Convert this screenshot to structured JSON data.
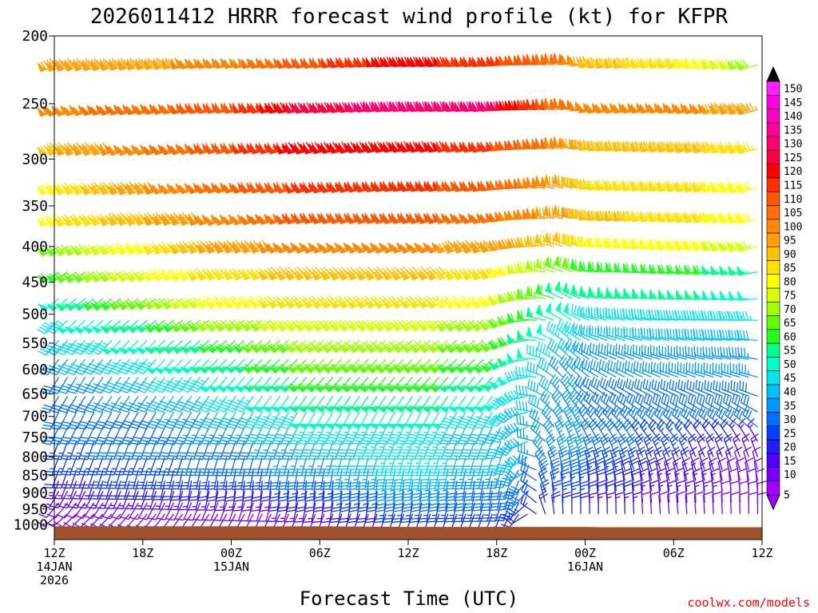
{
  "chart_data": {
    "type": "wind-barb-profile",
    "title": "2026011412 HRRR forecast wind profile (kt) for KFPR",
    "xlabel": "Forecast Time (UTC)",
    "ylabel": "",
    "credit": "coolwx.com/models",
    "y_axis": {
      "scale": "log-pressure",
      "range_hpa": [
        200,
        1050
      ],
      "ticks": [
        "200",
        "250",
        "300",
        "350",
        "400",
        "450",
        "500",
        "550",
        "600",
        "650",
        "700",
        "750",
        "800",
        "850",
        "900",
        "950",
        "1000"
      ]
    },
    "x_axis": {
      "range_hours": [
        0,
        48
      ],
      "ticks": [
        {
          "hour": 0,
          "l1": "12Z",
          "l2": "14JAN",
          "l3": "2026"
        },
        {
          "hour": 6,
          "l1": "18Z",
          "l2": "",
          "l3": ""
        },
        {
          "hour": 12,
          "l1": "00Z",
          "l2": "15JAN",
          "l3": ""
        },
        {
          "hour": 18,
          "l1": "06Z",
          "l2": "",
          "l3": ""
        },
        {
          "hour": 24,
          "l1": "12Z",
          "l2": "",
          "l3": ""
        },
        {
          "hour": 30,
          "l1": "18Z",
          "l2": "",
          "l3": ""
        },
        {
          "hour": 36,
          "l1": "00Z",
          "l2": "16JAN",
          "l3": ""
        },
        {
          "hour": 42,
          "l1": "06Z",
          "l2": "",
          "l3": ""
        },
        {
          "hour": 48,
          "l1": "12Z",
          "l2": "",
          "l3": ""
        }
      ]
    },
    "colorbar": {
      "levels": [
        5,
        10,
        15,
        20,
        25,
        30,
        35,
        40,
        45,
        50,
        55,
        60,
        65,
        70,
        75,
        80,
        85,
        90,
        95,
        100,
        105,
        110,
        115,
        120,
        125,
        130,
        135,
        140,
        145,
        150
      ],
      "labels": [
        "5",
        "10",
        "15",
        "20",
        "25",
        "30",
        "35",
        "40",
        "45",
        "50",
        "55",
        "60",
        "65",
        "70",
        "75",
        "80",
        "85",
        "90",
        "95",
        "100",
        "105",
        "110",
        "115",
        "120",
        "125",
        "130",
        "135",
        "140",
        "145",
        "150"
      ],
      "colors": [
        "#a000ff",
        "#7800ff",
        "#5000ff",
        "#2020f0",
        "#0040ff",
        "#0070ff",
        "#0098ff",
        "#00c0ff",
        "#00e6f0",
        "#00ffc8",
        "#00ff8c",
        "#20ff20",
        "#60ff00",
        "#a0ff00",
        "#d8ff00",
        "#ffff00",
        "#ffe000",
        "#ffc000",
        "#ffa000",
        "#ff8800",
        "#ff7000",
        "#ff5800",
        "#ff3000",
        "#ff0000",
        "#ff0040",
        "#ff0070",
        "#ff0098",
        "#ff00c0",
        "#ff00e6",
        "#ff20ff"
      ]
    },
    "profile": {
      "hours": [
        0,
        6,
        12,
        18,
        24,
        30,
        35,
        37,
        42,
        48
      ],
      "levels_hpa": [
        220,
        255,
        290,
        330,
        365,
        400,
        435,
        475,
        510,
        545,
        580,
        615,
        655,
        690,
        725,
        760,
        800,
        835,
        865,
        895,
        930,
        965
      ],
      "speeds_kt": [
        [
          95,
          95,
          100,
          110,
          120,
          115,
          105,
          90,
          85,
          70
        ],
        [
          100,
          105,
          110,
          125,
          130,
          130,
          105,
          100,
          100,
          95
        ],
        [
          90,
          100,
          110,
          120,
          120,
          115,
          100,
          90,
          90,
          85
        ],
        [
          80,
          95,
          105,
          115,
          115,
          110,
          95,
          85,
          85,
          80
        ],
        [
          80,
          90,
          100,
          110,
          110,
          105,
          95,
          90,
          85,
          80
        ],
        [
          65,
          80,
          95,
          100,
          100,
          95,
          90,
          80,
          80,
          75
        ],
        [
          60,
          75,
          85,
          90,
          90,
          85,
          65,
          60,
          60,
          55
        ],
        [
          50,
          65,
          80,
          85,
          85,
          80,
          55,
          55,
          55,
          50
        ],
        [
          45,
          55,
          70,
          75,
          75,
          70,
          50,
          45,
          45,
          45
        ],
        [
          40,
          50,
          60,
          70,
          70,
          65,
          45,
          40,
          40,
          40
        ],
        [
          35,
          45,
          55,
          65,
          65,
          60,
          40,
          35,
          35,
          35
        ],
        [
          30,
          40,
          50,
          60,
          60,
          55,
          35,
          35,
          35,
          35
        ],
        [
          30,
          35,
          45,
          55,
          55,
          50,
          35,
          30,
          30,
          30
        ],
        [
          30,
          30,
          40,
          50,
          50,
          45,
          35,
          30,
          30,
          30
        ],
        [
          30,
          30,
          35,
          45,
          45,
          40,
          35,
          30,
          30,
          30
        ],
        [
          25,
          30,
          30,
          40,
          45,
          40,
          35,
          30,
          25,
          15
        ],
        [
          25,
          25,
          30,
          35,
          45,
          40,
          35,
          30,
          25,
          15
        ],
        [
          20,
          25,
          25,
          30,
          40,
          35,
          30,
          25,
          20,
          10
        ],
        [
          15,
          20,
          20,
          25,
          35,
          30,
          30,
          25,
          15,
          10
        ],
        [
          15,
          15,
          15,
          20,
          30,
          30,
          25,
          20,
          15,
          10
        ],
        [
          10,
          10,
          10,
          15,
          25,
          25,
          25,
          20,
          15,
          10
        ],
        [
          10,
          10,
          10,
          10,
          20,
          20,
          20,
          15,
          10,
          10
        ]
      ],
      "directions_deg": [
        [
          250,
          255,
          260,
          260,
          265,
          265,
          280,
          260,
          260,
          255
        ],
        [
          250,
          255,
          260,
          260,
          265,
          265,
          280,
          260,
          260,
          255
        ],
        [
          250,
          250,
          255,
          255,
          260,
          260,
          280,
          265,
          260,
          255
        ],
        [
          250,
          250,
          255,
          255,
          260,
          260,
          285,
          265,
          260,
          255
        ],
        [
          245,
          250,
          250,
          255,
          255,
          255,
          285,
          265,
          260,
          255
        ],
        [
          240,
          245,
          250,
          250,
          250,
          250,
          290,
          270,
          260,
          255
        ],
        [
          235,
          240,
          245,
          245,
          245,
          245,
          295,
          275,
          265,
          260
        ],
        [
          230,
          235,
          240,
          240,
          240,
          240,
          300,
          280,
          270,
          265
        ],
        [
          225,
          230,
          235,
          235,
          235,
          235,
          305,
          285,
          275,
          270
        ],
        [
          220,
          225,
          230,
          230,
          230,
          230,
          310,
          290,
          280,
          275
        ],
        [
          215,
          220,
          225,
          225,
          225,
          225,
          315,
          295,
          285,
          280
        ],
        [
          210,
          215,
          220,
          220,
          220,
          220,
          320,
          300,
          290,
          285
        ],
        [
          210,
          215,
          215,
          215,
          215,
          215,
          325,
          305,
          295,
          290
        ],
        [
          205,
          210,
          210,
          210,
          210,
          210,
          330,
          310,
          300,
          300
        ],
        [
          205,
          205,
          205,
          205,
          205,
          205,
          335,
          320,
          310,
          310
        ],
        [
          200,
          200,
          200,
          200,
          200,
          200,
          340,
          330,
          320,
          330
        ],
        [
          200,
          200,
          195,
          195,
          195,
          195,
          345,
          340,
          335,
          340
        ],
        [
          200,
          195,
          190,
          190,
          190,
          195,
          350,
          345,
          340,
          345
        ],
        [
          200,
          195,
          185,
          185,
          185,
          190,
          355,
          350,
          345,
          350
        ],
        [
          210,
          200,
          190,
          185,
          185,
          190,
          355,
          355,
          350,
          355
        ],
        [
          220,
          210,
          200,
          190,
          190,
          195,
          0,
          355,
          355,
          0
        ],
        [
          230,
          220,
          210,
          200,
          200,
          200,
          0,
          0,
          355,
          0
        ]
      ]
    },
    "terrain": {
      "color": "#a0522d",
      "surface_hpa": [
        1005,
        1005,
        1005,
        1005,
        1007,
        1007,
        1007,
        1008,
        1008,
        1008,
        1008
      ],
      "hours": [
        0,
        6,
        12,
        18,
        24,
        30,
        36,
        37,
        42,
        45,
        48
      ]
    },
    "colors": {
      "axis": "#000000",
      "background": "#ffffff"
    }
  }
}
